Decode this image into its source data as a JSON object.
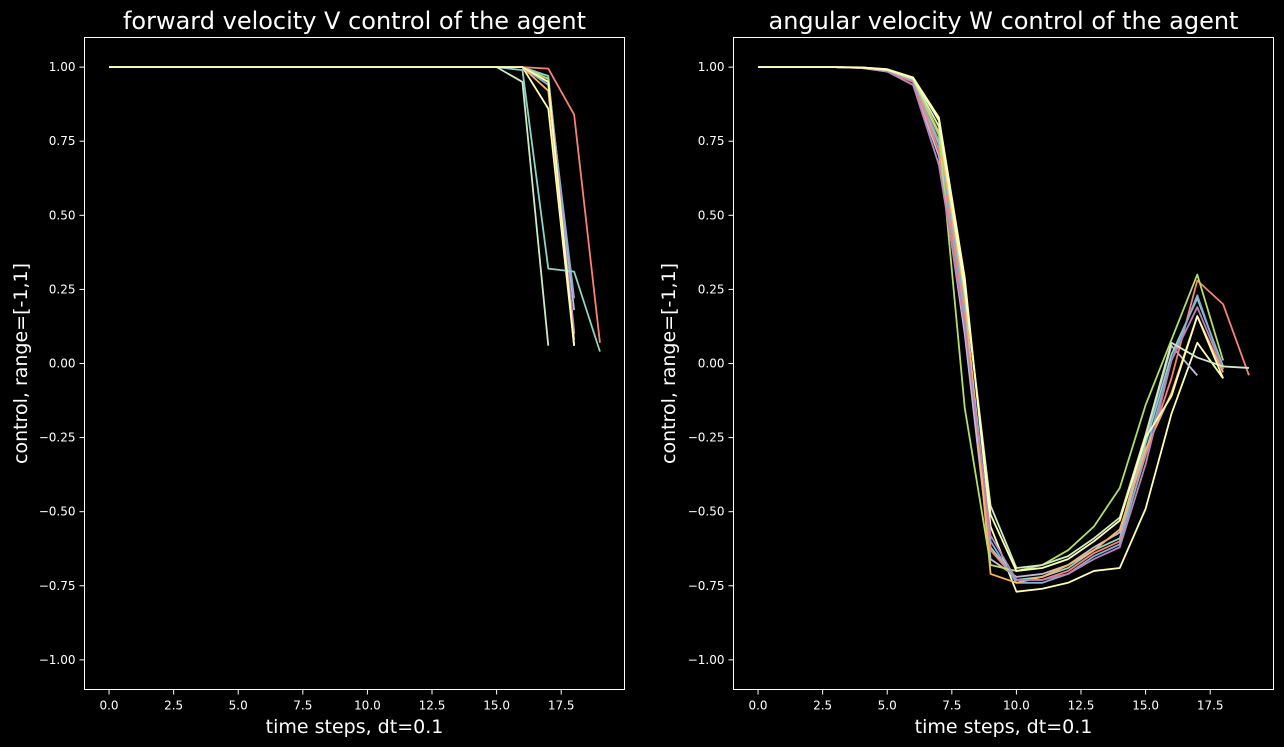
{
  "figure": {
    "background": "#000000",
    "foreground": "#ffffff"
  },
  "chart_data": [
    {
      "type": "line",
      "title": "forward velocity V control of the agent",
      "xlabel": "time steps, dt=0.1",
      "ylabel": "control, range=[-1,1]",
      "xlim": [
        -0.95,
        19.95
      ],
      "ylim": [
        -1.1,
        1.1
      ],
      "xticks": [
        0,
        2.5,
        5,
        7.5,
        10,
        12.5,
        15,
        17.5
      ],
      "xtick_labels": [
        "0.0",
        "2.5",
        "5.0",
        "7.5",
        "10.0",
        "12.5",
        "15.0",
        "17.5"
      ],
      "yticks": [
        1,
        0.75,
        0.5,
        0.25,
        0,
        -0.25,
        -0.5,
        -0.75,
        -1
      ],
      "ytick_labels": [
        "1.00",
        "0.75",
        "0.50",
        "0.25",
        "0.00",
        "−0.25",
        "−0.50",
        "−0.75",
        "−1.00"
      ],
      "grid": false,
      "series": [
        {
          "color": "#8dd3c7",
          "x": [
            0,
            1,
            2,
            3,
            4,
            5,
            6,
            7,
            8,
            9,
            10,
            11,
            12,
            13,
            14,
            15,
            16,
            17,
            18
          ],
          "values": [
            1,
            1,
            1,
            1,
            1,
            1,
            1,
            1,
            1,
            1,
            1,
            1,
            1,
            1,
            1,
            1,
            1,
            0.97,
            0.1
          ]
        },
        {
          "color": "#feffb3",
          "x": [
            0,
            1,
            2,
            3,
            4,
            5,
            6,
            7,
            8,
            9,
            10,
            11,
            12,
            13,
            14,
            15,
            16,
            17,
            18
          ],
          "values": [
            1,
            1,
            1,
            1,
            1,
            1,
            1,
            1,
            1,
            1,
            1,
            1,
            1,
            1,
            1,
            1,
            1,
            0.86,
            0.06
          ]
        },
        {
          "color": "#bfbbd9",
          "x": [
            0,
            1,
            2,
            3,
            4,
            5,
            6,
            7,
            8,
            9,
            10,
            11,
            12,
            13,
            14,
            15,
            16,
            17,
            18
          ],
          "values": [
            1,
            1,
            1,
            1,
            1,
            1,
            1,
            1,
            1,
            1,
            1,
            1,
            1,
            1,
            1,
            1,
            1,
            0.96,
            0.18
          ]
        },
        {
          "color": "#fa8174",
          "x": [
            0,
            1,
            2,
            3,
            4,
            5,
            6,
            7,
            8,
            9,
            10,
            11,
            12,
            13,
            14,
            15,
            16,
            17,
            18,
            19
          ],
          "values": [
            1,
            1,
            1,
            1,
            1,
            1,
            1,
            1,
            1,
            1,
            1,
            1,
            1,
            1,
            1,
            1,
            1,
            0.995,
            0.84,
            0.07
          ]
        },
        {
          "color": "#81b1d2",
          "x": [
            0,
            1,
            2,
            3,
            4,
            5,
            6,
            7,
            8,
            9,
            10,
            11,
            12,
            13,
            14,
            15,
            16,
            17,
            18
          ],
          "values": [
            1,
            1,
            1,
            1,
            1,
            1,
            1,
            1,
            1,
            1,
            1,
            1,
            1,
            1,
            1,
            1,
            1,
            0.94,
            0.22
          ]
        },
        {
          "color": "#fdb462",
          "x": [
            0,
            1,
            2,
            3,
            4,
            5,
            6,
            7,
            8,
            9,
            10,
            11,
            12,
            13,
            14,
            15,
            16,
            17,
            18
          ],
          "values": [
            1,
            1,
            1,
            1,
            1,
            1,
            1,
            1,
            1,
            1,
            1,
            1,
            1,
            1,
            1,
            1,
            1,
            0.92,
            0.08
          ]
        },
        {
          "color": "#b3de69",
          "x": [
            0,
            1,
            2,
            3,
            4,
            5,
            6,
            7,
            8,
            9,
            10,
            11,
            12,
            13,
            14,
            15,
            16,
            17,
            18
          ],
          "values": [
            1,
            1,
            1,
            1,
            1,
            1,
            1,
            1,
            1,
            1,
            1,
            1,
            1,
            1,
            1,
            1,
            1,
            0.96,
            0.06
          ]
        },
        {
          "color": "#bc82bd",
          "x": [
            0,
            1,
            2,
            3,
            4,
            5,
            6,
            7,
            8,
            9,
            10,
            11,
            12,
            13,
            14,
            15,
            16,
            17,
            18
          ],
          "values": [
            1,
            1,
            1,
            1,
            1,
            1,
            1,
            1,
            1,
            1,
            1,
            1,
            1,
            1,
            1,
            1,
            1,
            0.95,
            0.11
          ]
        },
        {
          "color": "#ccebc4",
          "x": [
            0,
            1,
            2,
            3,
            4,
            5,
            6,
            7,
            8,
            9,
            10,
            11,
            12,
            13,
            14,
            15,
            16,
            17
          ],
          "values": [
            1,
            1,
            1,
            1,
            1,
            1,
            1,
            1,
            1,
            1,
            1,
            1,
            1,
            1,
            1,
            1,
            0.95,
            0.06
          ]
        },
        {
          "color": "#8dd3c7",
          "x": [
            0,
            1,
            2,
            3,
            4,
            5,
            6,
            7,
            8,
            9,
            10,
            11,
            12,
            13,
            14,
            15,
            16,
            17,
            18,
            19
          ],
          "values": [
            1,
            1,
            1,
            1,
            1,
            1,
            1,
            1,
            1,
            1,
            1,
            1,
            1,
            1,
            1,
            1,
            0.99,
            0.32,
            0.31,
            0.04
          ]
        },
        {
          "color": "#feffb3",
          "x": [
            0,
            1,
            2,
            3,
            4,
            5,
            6,
            7,
            8,
            9,
            10,
            11,
            12,
            13,
            14,
            15,
            16,
            17,
            18
          ],
          "values": [
            1,
            1,
            1,
            1,
            1,
            1,
            1,
            1,
            1,
            1,
            1,
            1,
            1,
            1,
            1,
            1,
            1,
            0.95,
            0.06
          ]
        }
      ]
    },
    {
      "type": "line",
      "title": "angular velocity W control of the agent",
      "xlabel": "time steps, dt=0.1",
      "ylabel": "control, range=[-1,1]",
      "xlim": [
        -0.95,
        19.95
      ],
      "ylim": [
        -1.1,
        1.1
      ],
      "xticks": [
        0,
        2.5,
        5,
        7.5,
        10,
        12.5,
        15,
        17.5
      ],
      "xtick_labels": [
        "0.0",
        "2.5",
        "5.0",
        "7.5",
        "10.0",
        "12.5",
        "15.0",
        "17.5"
      ],
      "yticks": [
        1,
        0.75,
        0.5,
        0.25,
        0,
        -0.25,
        -0.5,
        -0.75,
        -1
      ],
      "ytick_labels": [
        "1.00",
        "0.75",
        "0.50",
        "0.25",
        "0.00",
        "−0.25",
        "−0.50",
        "−0.75",
        "−1.00"
      ],
      "grid": false,
      "series": [
        {
          "color": "#8dd3c7",
          "x": [
            0,
            1,
            2,
            3,
            4,
            5,
            6,
            7,
            8,
            9,
            10,
            11,
            12,
            13,
            14,
            15,
            16,
            17,
            18
          ],
          "values": [
            1,
            1,
            1,
            1,
            0.998,
            0.99,
            0.955,
            0.74,
            0.2,
            -0.62,
            -0.73,
            -0.72,
            -0.69,
            -0.63,
            -0.59,
            -0.27,
            0.03,
            0.22,
            -0.01
          ]
        },
        {
          "color": "#feffb3",
          "x": [
            0,
            1,
            2,
            3,
            4,
            5,
            6,
            7,
            8,
            9,
            10,
            11,
            12,
            13,
            14,
            15,
            16,
            17,
            18
          ],
          "values": [
            1,
            1,
            1,
            1,
            0.999,
            0.993,
            0.965,
            0.83,
            0.29,
            -0.55,
            -0.77,
            -0.76,
            -0.74,
            -0.7,
            -0.69,
            -0.49,
            -0.17,
            0.07,
            -0.05
          ]
        },
        {
          "color": "#bfbbd9",
          "x": [
            0,
            1,
            2,
            3,
            4,
            5,
            6,
            7,
            8,
            9,
            10,
            11,
            12,
            13,
            14,
            15,
            16,
            17
          ],
          "values": [
            1,
            1,
            1,
            1,
            0.997,
            0.985,
            0.94,
            0.7,
            0.1,
            -0.66,
            -0.72,
            -0.71,
            -0.68,
            -0.62,
            -0.57,
            -0.25,
            0.06,
            -0.04
          ]
        },
        {
          "color": "#fa8174",
          "x": [
            0,
            1,
            2,
            3,
            4,
            5,
            6,
            7,
            8,
            9,
            10,
            11,
            12,
            13,
            14,
            15,
            16,
            17,
            18,
            19
          ],
          "values": [
            1,
            1,
            1,
            1,
            0.997,
            0.987,
            0.95,
            0.72,
            0.16,
            -0.63,
            -0.73,
            -0.73,
            -0.7,
            -0.64,
            -0.6,
            -0.31,
            -0.05,
            0.28,
            0.2,
            -0.04
          ]
        },
        {
          "color": "#81b1d2",
          "x": [
            0,
            1,
            2,
            3,
            4,
            5,
            6,
            7,
            8,
            9,
            10,
            11,
            12,
            13,
            14,
            15,
            16,
            17,
            18
          ],
          "values": [
            1,
            1,
            1,
            1,
            0.998,
            0.99,
            0.955,
            0.75,
            0.19,
            -0.6,
            -0.74,
            -0.74,
            -0.71,
            -0.65,
            -0.61,
            -0.3,
            0.01,
            0.23,
            -0.02
          ]
        },
        {
          "color": "#fdb462",
          "x": [
            0,
            1,
            2,
            3,
            4,
            5,
            6,
            7,
            8,
            9,
            10,
            11,
            12,
            13,
            14,
            15,
            16,
            17,
            18
          ],
          "values": [
            1,
            1,
            1,
            1,
            0.998,
            0.99,
            0.96,
            0.77,
            0.23,
            -0.71,
            -0.74,
            -0.72,
            -0.68,
            -0.63,
            -0.56,
            -0.29,
            -0.1,
            0.16,
            -0.03
          ]
        },
        {
          "color": "#b3de69",
          "x": [
            0,
            1,
            2,
            3,
            4,
            5,
            6,
            7,
            8,
            9,
            10,
            11,
            12,
            13,
            14,
            15,
            16,
            17,
            18
          ],
          "values": [
            1,
            1,
            1,
            1,
            0.998,
            0.99,
            0.96,
            0.78,
            -0.15,
            -0.68,
            -0.7,
            -0.68,
            -0.63,
            -0.55,
            -0.42,
            -0.14,
            0.08,
            0.3,
            0.01
          ]
        },
        {
          "color": "#bc82bd",
          "x": [
            0,
            1,
            2,
            3,
            4,
            5,
            6,
            7,
            8,
            9,
            10,
            11,
            12,
            13,
            14,
            15,
            16,
            17,
            18
          ],
          "values": [
            1,
            1,
            1,
            1,
            0.997,
            0.986,
            0.94,
            0.67,
            0.13,
            -0.58,
            -0.73,
            -0.73,
            -0.71,
            -0.66,
            -0.62,
            -0.34,
            0.01,
            0.19,
            -0.02
          ]
        },
        {
          "color": "#ccebc4",
          "x": [
            0,
            1,
            2,
            3,
            4,
            5,
            6,
            7,
            8,
            9,
            10,
            11,
            12,
            13,
            14,
            15,
            16,
            17,
            18,
            19
          ],
          "values": [
            1,
            1,
            1,
            1,
            0.998,
            0.99,
            0.96,
            0.8,
            0.25,
            -0.48,
            -0.69,
            -0.68,
            -0.65,
            -0.59,
            -0.52,
            -0.24,
            0.07,
            0.02,
            -0.01,
            -0.015
          ]
        },
        {
          "color": "#feffb3",
          "x": [
            0,
            1,
            2,
            3,
            4,
            5,
            6,
            7,
            8,
            9,
            10,
            11,
            12,
            13,
            14,
            15,
            16,
            17,
            18
          ],
          "values": [
            1,
            1,
            1,
            1,
            0.999,
            0.992,
            0.965,
            0.82,
            0.26,
            -0.51,
            -0.7,
            -0.69,
            -0.66,
            -0.6,
            -0.53,
            -0.25,
            -0.11,
            0.16,
            -0.05
          ]
        }
      ]
    }
  ]
}
